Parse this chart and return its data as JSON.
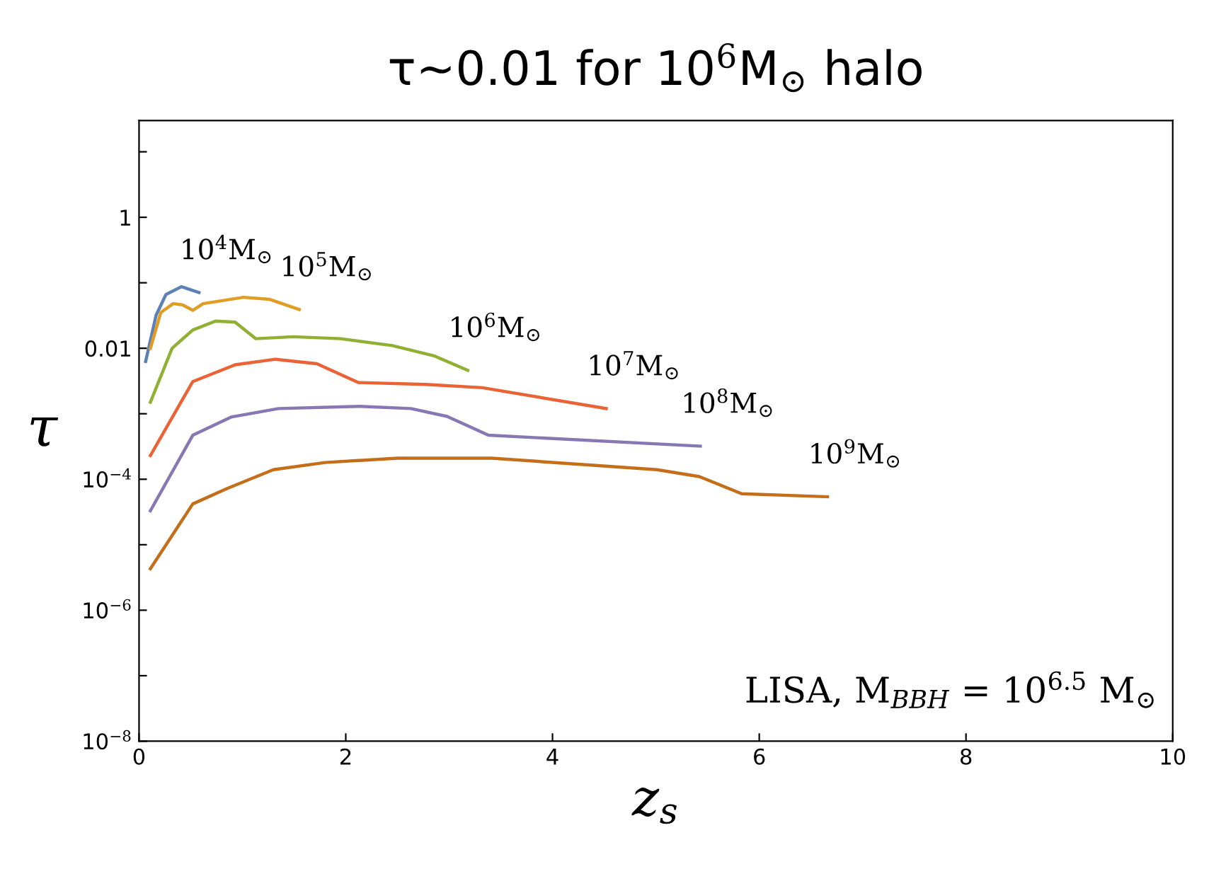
{
  "chart_data": {
    "type": "line",
    "title": "τ~0.01 for 10$^{6}$M$_{⊙}$ halo",
    "xlabel": "z$_{s}$",
    "ylabel": "τ",
    "annotations": [
      "LISA, M$_{BBH}$ = 10$^{6.5}$ M$_{⊙}$"
    ],
    "log": "y",
    "grid": false,
    "legend": false,
    "xlim": [
      0,
      10
    ],
    "xticks": [
      0,
      2,
      4,
      6,
      8,
      10
    ],
    "ylim": [
      1e-08,
      30
    ],
    "yticks": [
      {
        "value": 1e-08,
        "label": "10$^{−8}$"
      },
      {
        "value": 1e-07,
        "label": null
      },
      {
        "value": 1e-06,
        "label": "10$^{−6}$"
      },
      {
        "value": 1e-05,
        "label": null
      },
      {
        "value": 0.0001,
        "label": "10$^{−4}$"
      },
      {
        "value": 0.001,
        "label": null
      },
      0.01,
      {
        "value": 0.1,
        "label": null
      },
      1,
      {
        "value": 10,
        "label": null
      }
    ],
    "series": [
      {
        "name": "10$^{4}$M$_{⊙}$",
        "color": "#5e81b5",
        "x": [
          0.064,
          0.165,
          0.26,
          0.41,
          0.58
        ],
        "values": [
          0.0063,
          0.032,
          0.066,
          0.087,
          0.071
        ]
      },
      {
        "name": "10$^{5}$M$_{⊙}$",
        "color": "#e19c24",
        "x": [
          0.11,
          0.21,
          0.33,
          0.42,
          0.52,
          0.62,
          1.01,
          1.26,
          1.55
        ],
        "values": [
          0.01,
          0.035,
          0.048,
          0.046,
          0.038,
          0.048,
          0.06,
          0.056,
          0.039
        ]
      },
      {
        "name": "10$^{6}$M$_{⊙}$",
        "color": "#8fb032",
        "x": [
          0.11,
          0.32,
          0.52,
          0.74,
          0.93,
          1.13,
          1.49,
          1.95,
          2.45,
          2.86,
          3.18
        ],
        "values": [
          0.0015,
          0.01,
          0.019,
          0.026,
          0.025,
          0.014,
          0.015,
          0.014,
          0.011,
          0.0076,
          0.0046
        ]
      },
      {
        "name": "10$^{7}$M$_{⊙}$",
        "color": "#eb6235",
        "x": [
          0.11,
          0.52,
          0.93,
          1.32,
          1.72,
          2.12,
          2.77,
          3.32,
          4.52
        ],
        "values": [
          0.00023,
          0.0031,
          0.0056,
          0.0068,
          0.0058,
          0.003,
          0.0028,
          0.0025,
          0.0012
        ]
      },
      {
        "name": "10$^{8}$M$_{⊙}$",
        "color": "#8778b3",
        "x": [
          0.11,
          0.52,
          0.89,
          1.35,
          2.13,
          2.63,
          2.98,
          3.38,
          5.43
        ],
        "values": [
          3.3e-05,
          0.00047,
          0.00089,
          0.0012,
          0.0013,
          0.0012,
          0.00091,
          0.00047,
          0.00032
        ]
      },
      {
        "name": "10$^{9}$M$_{⊙}$",
        "color": "#c56e1a",
        "x": [
          0.11,
          0.52,
          0.85,
          1.3,
          1.8,
          2.5,
          2.77,
          3.41,
          5.01,
          5.42,
          5.83,
          6.66
        ],
        "values": [
          4.3e-06,
          4.2e-05,
          7.2e-05,
          0.00014,
          0.00018,
          0.00021,
          0.00021,
          0.00021,
          0.00014,
          0.00011,
          6e-05,
          5.4e-05
        ]
      }
    ]
  }
}
